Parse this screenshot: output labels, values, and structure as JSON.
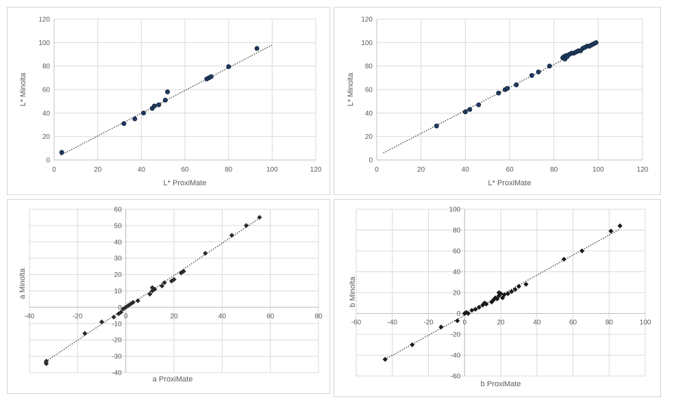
{
  "chart_data": [
    {
      "type": "scatter",
      "xlabel": "L* ProxiMate",
      "ylabel": "L* Minolta",
      "xlim": [
        0,
        120
      ],
      "ylim": [
        0,
        120
      ],
      "xticks": [
        0,
        20,
        40,
        60,
        80,
        100,
        120
      ],
      "yticks": [
        0,
        20,
        40,
        60,
        80,
        100,
        120
      ],
      "grid": true,
      "trendline": {
        "style": "dotted",
        "x": [
          3,
          100
        ],
        "y": [
          4,
          98
        ]
      },
      "points": [
        {
          "x": 3.5,
          "y": 6.5
        },
        {
          "x": 32,
          "y": 31
        },
        {
          "x": 37,
          "y": 35
        },
        {
          "x": 41,
          "y": 40
        },
        {
          "x": 45,
          "y": 44
        },
        {
          "x": 46,
          "y": 46
        },
        {
          "x": 48,
          "y": 47
        },
        {
          "x": 51,
          "y": 51
        },
        {
          "x": 52,
          "y": 58
        },
        {
          "x": 70,
          "y": 69
        },
        {
          "x": 71,
          "y": 70
        },
        {
          "x": 72,
          "y": 71
        },
        {
          "x": 80,
          "y": 79.5
        },
        {
          "x": 93,
          "y": 95
        }
      ]
    },
    {
      "type": "scatter",
      "xlabel": "L* ProxiMate",
      "ylabel": "L* Minolta",
      "xlim": [
        0,
        120
      ],
      "ylim": [
        0,
        120
      ],
      "xticks": [
        0,
        20,
        40,
        60,
        80,
        100,
        120
      ],
      "yticks": [
        0,
        20,
        40,
        60,
        80,
        100,
        120
      ],
      "grid": true,
      "trendline": {
        "style": "dotted",
        "x": [
          3,
          99
        ],
        "y": [
          6,
          100
        ]
      },
      "points": [
        {
          "x": 27,
          "y": 29
        },
        {
          "x": 40,
          "y": 41
        },
        {
          "x": 42,
          "y": 43
        },
        {
          "x": 46,
          "y": 47
        },
        {
          "x": 55,
          "y": 57
        },
        {
          "x": 58,
          "y": 60
        },
        {
          "x": 59,
          "y": 61
        },
        {
          "x": 63,
          "y": 64
        },
        {
          "x": 70,
          "y": 72
        },
        {
          "x": 73,
          "y": 75
        },
        {
          "x": 78,
          "y": 80
        },
        {
          "x": 84,
          "y": 87
        },
        {
          "x": 84.5,
          "y": 88
        },
        {
          "x": 85,
          "y": 86
        },
        {
          "x": 85.5,
          "y": 89
        },
        {
          "x": 86,
          "y": 88
        },
        {
          "x": 87,
          "y": 90
        },
        {
          "x": 88,
          "y": 91
        },
        {
          "x": 89,
          "y": 91
        },
        {
          "x": 90,
          "y": 92
        },
        {
          "x": 91,
          "y": 93
        },
        {
          "x": 92,
          "y": 93
        },
        {
          "x": 93,
          "y": 95
        },
        {
          "x": 94,
          "y": 96
        },
        {
          "x": 95,
          "y": 97
        },
        {
          "x": 96,
          "y": 97
        },
        {
          "x": 97,
          "y": 98
        },
        {
          "x": 98,
          "y": 99
        },
        {
          "x": 99,
          "y": 100
        }
      ]
    },
    {
      "type": "scatter",
      "xlabel": "a ProxiMate",
      "ylabel": "a Minolta",
      "xlim": [
        -40,
        80
      ],
      "ylim": [
        -40,
        60
      ],
      "xticks": [
        -40,
        -20,
        0,
        20,
        40,
        60,
        80
      ],
      "yticks": [
        -40,
        -30,
        -20,
        -10,
        0,
        10,
        20,
        30,
        40,
        50,
        60
      ],
      "grid": true,
      "trendline": {
        "style": "dotted",
        "x": [
          -34,
          56
        ],
        "y": [
          -34,
          55
        ]
      },
      "points": [
        {
          "x": -33,
          "y": -33
        },
        {
          "x": -33,
          "y": -34.5
        },
        {
          "x": -17,
          "y": -16
        },
        {
          "x": -10,
          "y": -9
        },
        {
          "x": -5,
          "y": -6
        },
        {
          "x": -3,
          "y": -4
        },
        {
          "x": -2,
          "y": -3
        },
        {
          "x": -1,
          "y": -1
        },
        {
          "x": 0,
          "y": 0
        },
        {
          "x": 1,
          "y": 1
        },
        {
          "x": 2,
          "y": 2
        },
        {
          "x": 3,
          "y": 3
        },
        {
          "x": 5,
          "y": 4
        },
        {
          "x": 10,
          "y": 8
        },
        {
          "x": 11,
          "y": 10
        },
        {
          "x": 11,
          "y": 12
        },
        {
          "x": 12,
          "y": 11
        },
        {
          "x": 15,
          "y": 13
        },
        {
          "x": 16,
          "y": 15
        },
        {
          "x": 19,
          "y": 16
        },
        {
          "x": 20,
          "y": 17
        },
        {
          "x": 23,
          "y": 21
        },
        {
          "x": 24,
          "y": 22
        },
        {
          "x": 33,
          "y": 33
        },
        {
          "x": 44,
          "y": 44
        },
        {
          "x": 50,
          "y": 50
        },
        {
          "x": 55.5,
          "y": 55
        }
      ]
    },
    {
      "type": "scatter",
      "xlabel": "b ProxiMate",
      "ylabel": "b Minolta",
      "xlim": [
        -60,
        100
      ],
      "ylim": [
        -60,
        100
      ],
      "xticks": [
        -60,
        -40,
        -20,
        0,
        20,
        40,
        60,
        80,
        100
      ],
      "yticks": [
        -60,
        -40,
        -20,
        0,
        20,
        40,
        60,
        80,
        100
      ],
      "grid": true,
      "trendline": {
        "style": "dotted",
        "x": [
          -44,
          86
        ],
        "y": [
          -44,
          81
        ]
      },
      "points": [
        {
          "x": -44,
          "y": -44
        },
        {
          "x": -29,
          "y": -30
        },
        {
          "x": -13,
          "y": -13
        },
        {
          "x": -4,
          "y": -7
        },
        {
          "x": 0,
          "y": 0
        },
        {
          "x": 1,
          "y": 1
        },
        {
          "x": 2,
          "y": 0
        },
        {
          "x": 4,
          "y": 3
        },
        {
          "x": 6,
          "y": 4
        },
        {
          "x": 8,
          "y": 6
        },
        {
          "x": 10,
          "y": 8
        },
        {
          "x": 11,
          "y": 10
        },
        {
          "x": 12,
          "y": 9
        },
        {
          "x": 15,
          "y": 11
        },
        {
          "x": 16,
          "y": 13
        },
        {
          "x": 17,
          "y": 15
        },
        {
          "x": 18,
          "y": 14
        },
        {
          "x": 19,
          "y": 17
        },
        {
          "x": 19,
          "y": 20
        },
        {
          "x": 20,
          "y": 19
        },
        {
          "x": 21,
          "y": 15
        },
        {
          "x": 22,
          "y": 18
        },
        {
          "x": 24,
          "y": 19
        },
        {
          "x": 26,
          "y": 21
        },
        {
          "x": 28,
          "y": 23
        },
        {
          "x": 30,
          "y": 26
        },
        {
          "x": 34,
          "y": 28
        },
        {
          "x": 55,
          "y": 52
        },
        {
          "x": 65,
          "y": 60
        },
        {
          "x": 81,
          "y": 79
        },
        {
          "x": 86,
          "y": 84
        }
      ]
    }
  ]
}
